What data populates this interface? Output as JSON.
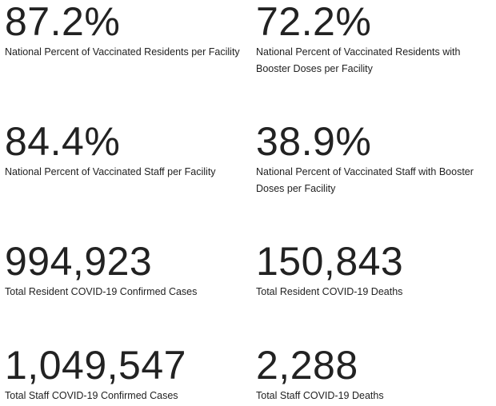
{
  "stats": [
    {
      "value": "87.2%",
      "label": "National Percent of Vaccinated Residents per Facility"
    },
    {
      "value": "72.2%",
      "label": "National Percent of Vaccinated Residents with Booster Doses per Facility"
    },
    {
      "value": "84.4%",
      "label": "National Percent of Vaccinated Staff per Facility"
    },
    {
      "value": "38.9%",
      "label": "National Percent of Vaccinated Staff with Booster Doses per Facility"
    },
    {
      "value": "994,923",
      "label": "Total Resident COVID-19 Confirmed Cases"
    },
    {
      "value": "150,843",
      "label": "Total Resident COVID-19 Deaths"
    },
    {
      "value": "1,049,547",
      "label": "Total Staff COVID-19 Confirmed Cases"
    },
    {
      "value": "2,288",
      "label": "Total Staff COVID-19 Deaths"
    }
  ]
}
